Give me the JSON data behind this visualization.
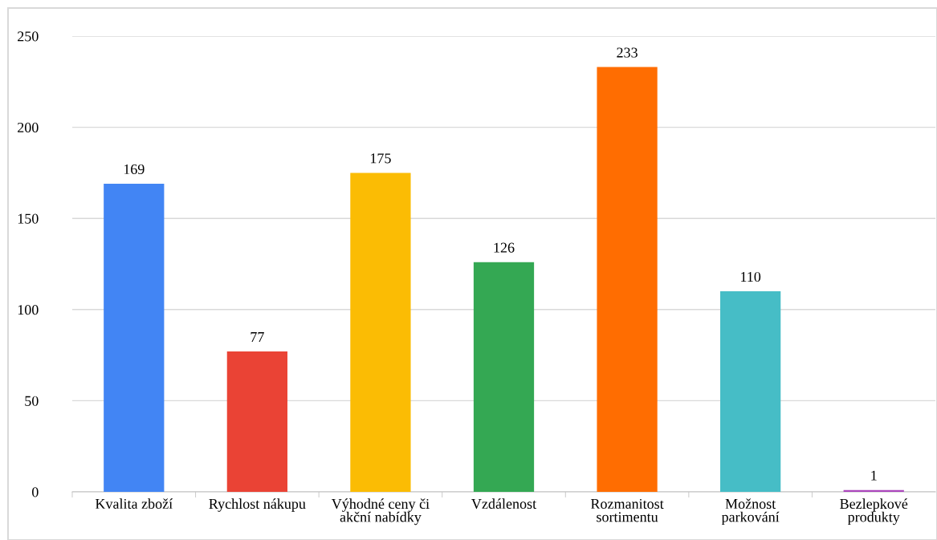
{
  "chart_data": {
    "type": "bar",
    "categories": [
      "Kvalita zboží",
      "Rychlost nákupu",
      "Výhodné ceny či akční nabídky",
      "Vzdálenost",
      "Rozmanitost sortimentu",
      "Možnost parkování",
      "Bezlepkové produkty"
    ],
    "values": [
      169,
      77,
      175,
      126,
      233,
      110,
      1
    ],
    "colors": [
      "#4285f4",
      "#ea4335",
      "#fbbc04",
      "#34a853",
      "#ff6d01",
      "#46bdc6",
      "#ab47bc"
    ],
    "ylim": [
      0,
      250
    ],
    "yticks": [
      0,
      50,
      100,
      150,
      200,
      250
    ],
    "grid": "y",
    "data_labels": true
  }
}
